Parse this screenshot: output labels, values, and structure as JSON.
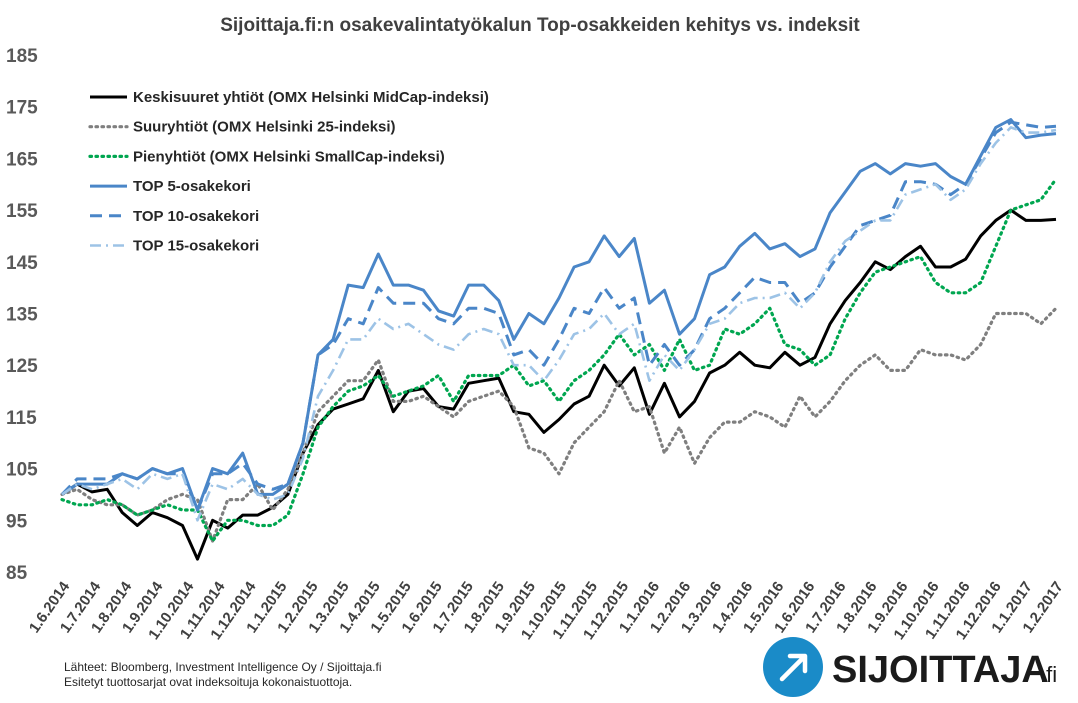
{
  "chart_data": {
    "type": "line",
    "title": "Sijoittaja.fi:n osakevalintatyökalun Top-osakkeiden kehitys vs. indeksit",
    "ylim": [
      85,
      185
    ],
    "yticks": [
      85,
      95,
      105,
      115,
      125,
      135,
      145,
      155,
      165,
      175,
      185
    ],
    "grid": false,
    "legend_position": "top-left",
    "x_labels": [
      "1.6.2014",
      "1.7.2014",
      "1.8.2014",
      "1.9.2014",
      "1.10.2014",
      "1.11.2014",
      "1.12.2014",
      "1.1.2015",
      "1.2.2015",
      "1.3.2015",
      "1.4.2015",
      "1.5.2015",
      "1.6.2015",
      "1.7.2015",
      "1.8.2015",
      "1.9.2015",
      "1.10.2015",
      "1.11.2015",
      "1.12.2015",
      "1.1.2016",
      "1.2.2016",
      "1.3.2016",
      "1.4.2016",
      "1.5.2016",
      "1.6.2016",
      "1.7.2016",
      "1.8.2016",
      "1.9.2016",
      "1.10.2016",
      "1.11.2016",
      "1.12.2016",
      "1.1.2017",
      "1.2.2017"
    ],
    "series": [
      {
        "name": "Keskisuuret yhtiöt (OMX Helsinki MidCap-indeksi)",
        "color": "#000000",
        "style": "solid",
        "values": [
          100,
          102,
          100.5,
          101,
          96.5,
          94,
          96.5,
          95.5,
          94,
          87.5,
          95,
          93.5,
          96,
          96,
          97.5,
          100,
          108,
          113.5,
          116.5,
          117.5,
          118.5,
          124,
          116,
          120,
          120.5,
          117,
          116.5,
          121.5,
          122,
          122.5,
          116,
          115.5,
          112,
          114.5,
          117.5,
          119,
          125,
          121,
          124.5,
          115.5,
          121.5,
          115,
          118,
          123.5,
          125,
          127.5,
          125,
          124.5,
          127.5,
          125,
          126.5,
          133,
          137.5,
          141,
          145,
          143.5,
          146,
          148,
          144,
          144,
          145.5,
          150,
          153,
          155,
          153,
          153,
          153.2
        ]
      },
      {
        "name": "Suuryhtiöt (OMX Helsinki 25-indeksi)",
        "color": "#7f7f7f",
        "style": "dotted",
        "values": [
          100,
          101,
          99,
          98,
          98,
          96,
          97,
          99,
          100,
          99,
          91,
          99,
          99,
          102,
          97,
          101,
          108,
          116,
          119,
          122,
          122,
          126,
          118,
          118,
          119,
          117,
          115,
          118,
          119,
          120,
          117,
          109,
          108,
          104,
          110,
          113,
          116,
          122,
          116,
          117,
          108,
          113,
          106,
          111,
          114,
          114,
          116,
          115,
          113,
          119,
          115,
          118,
          122,
          125,
          127,
          124,
          124,
          128,
          127,
          127,
          126,
          129,
          135,
          135,
          135,
          133,
          136
        ]
      },
      {
        "name": "Pienyhtiöt (OMX Helsinki SmallCap-indeksi)",
        "color": "#00a650",
        "style": "dotted",
        "values": [
          99,
          98,
          98,
          99,
          98,
          96,
          97,
          98,
          97,
          97,
          91,
          95,
          95,
          94,
          94,
          96,
          104,
          113,
          117,
          120,
          121,
          123,
          119,
          120,
          121,
          123,
          118,
          123,
          123,
          123,
          125,
          121,
          122,
          118,
          122,
          124,
          127,
          131,
          127,
          129,
          124,
          130,
          124,
          125,
          132,
          131,
          133,
          136,
          129,
          128,
          125,
          127,
          134,
          139,
          143,
          144,
          145,
          146,
          141,
          139,
          139,
          141,
          148,
          155,
          156,
          157,
          161
        ]
      },
      {
        "name": "TOP 5-osakekori",
        "color": "#4a86c8",
        "style": "solid",
        "values": [
          100,
          102,
          102,
          102,
          104,
          103,
          105,
          104,
          105,
          97,
          105,
          104,
          108,
          100,
          100,
          102,
          110,
          127,
          130,
          140.5,
          140,
          146.5,
          140.5,
          140.5,
          139.5,
          135.5,
          134.5,
          140.5,
          140.5,
          137.5,
          130,
          135,
          133,
          138,
          144,
          145,
          150,
          146,
          149.5,
          137,
          139.5,
          131,
          134,
          142.5,
          144,
          148,
          150.5,
          147.5,
          148.5,
          146,
          147.5,
          154.5,
          158.5,
          162.5,
          164,
          162,
          164,
          163.5,
          164,
          161.5,
          160,
          165.5,
          171,
          172.5,
          169,
          169.5,
          169.8
        ]
      },
      {
        "name": "TOP 10-osakekori",
        "color": "#4a86c8",
        "style": "dashed",
        "values": [
          100,
          103,
          103,
          103,
          104,
          103,
          105,
          104,
          104,
          97,
          104,
          104,
          106,
          102,
          101,
          102,
          110,
          127,
          129,
          134,
          133,
          140,
          137,
          137,
          137,
          134,
          133,
          136,
          136,
          135,
          127,
          128,
          125,
          130,
          136,
          135,
          140,
          136,
          138,
          125,
          129,
          125,
          128,
          134,
          136,
          139,
          142,
          141,
          141,
          137,
          139,
          144,
          148,
          152,
          153,
          154,
          160.5,
          160.5,
          160,
          158,
          160,
          165,
          170,
          172,
          171.5,
          171,
          171.2
        ]
      },
      {
        "name": "TOP 15-osakekori",
        "color": "#9dc3e6",
        "style": "dashdot",
        "values": [
          100,
          102,
          101,
          102,
          103,
          101,
          104,
          103,
          104,
          95,
          102,
          101,
          103,
          100,
          99,
          100,
          107,
          119,
          124,
          130,
          130,
          134,
          132,
          133,
          131,
          129,
          128,
          131,
          132,
          131,
          125,
          125,
          122,
          126,
          131,
          132,
          135,
          131,
          133,
          122,
          127,
          124,
          128,
          133,
          134,
          137,
          138,
          138,
          139,
          136,
          139,
          145,
          149,
          151,
          153,
          153,
          158,
          159,
          160,
          157,
          159,
          164,
          168,
          171,
          170,
          170,
          170.5
        ]
      }
    ]
  },
  "source_lines": [
    "Lähteet: Bloomberg, Investment Intelligence Oy / Sijoittaja.fi",
    "Esitetyt tuottosarjat ovat indeksoituja kokonaistuottoja."
  ],
  "logo": {
    "text": "SIJOITTAJA",
    "suffix": ".fi",
    "circle_color": "#1a8bc8"
  }
}
